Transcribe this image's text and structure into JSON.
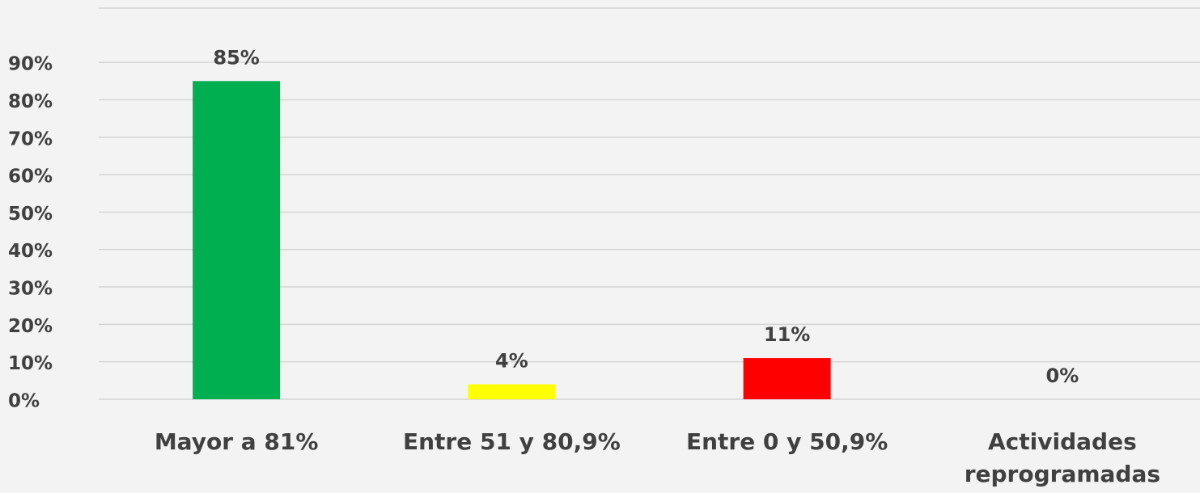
{
  "chart_data": {
    "type": "bar",
    "categories": [
      "Mayor a 81%",
      "Entre 51 y 80,9%",
      "Entre 0 y 50,9%",
      "Actividades reprogramadas"
    ],
    "values": [
      85,
      4,
      11,
      0
    ],
    "value_labels": [
      "85%",
      "4%",
      "11%",
      "0%"
    ],
    "colors": [
      "#00b050",
      "#ffff00",
      "#ff0000",
      "#a5a5a5"
    ],
    "ylim": [
      0,
      104.5
    ],
    "yticks": [
      {
        "value": 0,
        "label": "0%"
      },
      {
        "value": 10,
        "label": "10%"
      },
      {
        "value": 20,
        "label": "20%"
      },
      {
        "value": 30,
        "label": "30%"
      },
      {
        "value": 40,
        "label": "40%"
      },
      {
        "value": 50,
        "label": "50%"
      },
      {
        "value": 60,
        "label": "60%"
      },
      {
        "value": 70,
        "label": "70%"
      },
      {
        "value": 80,
        "label": "80%"
      },
      {
        "value": 90,
        "label": "90%"
      }
    ],
    "grid": true
  }
}
